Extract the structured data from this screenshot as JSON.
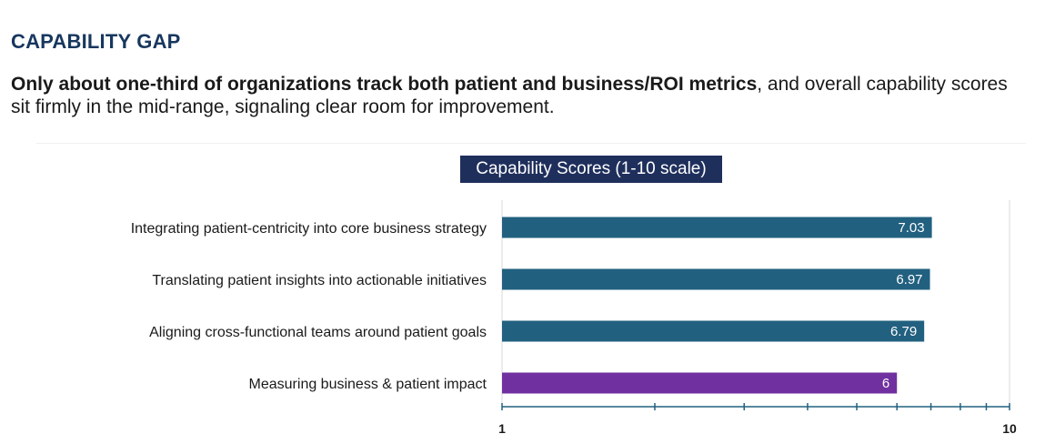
{
  "header": {
    "title": "CAPABILITY GAP",
    "summary_bold": "Only about one-third of organizations track both patient and business/ROI metrics",
    "summary_rest": ", and overall capability scores sit firmly in the mid-range, signaling clear room for improvement."
  },
  "chart_data": {
    "type": "bar",
    "orientation": "horizontal",
    "title": "Capability Scores (1-10 scale)",
    "categories": [
      "Integrating patient-centricity into core business strategy",
      "Translating patient insights into actionable initiatives",
      "Aligning cross-functional teams around patient goals",
      "Measuring business & patient impact"
    ],
    "values": [
      7.03,
      6.97,
      6.79,
      6
    ],
    "value_labels": [
      "7.03",
      "6.97",
      "6.79",
      "6"
    ],
    "colors": [
      "#22607f",
      "#22607f",
      "#22607f",
      "#7030a0"
    ],
    "xscale": "log",
    "xlim": [
      1,
      10
    ],
    "xtick_labels": [
      "1",
      "10"
    ],
    "minor_ticks": [
      2,
      3,
      4,
      5,
      6,
      7,
      8,
      9
    ],
    "xlabel": "",
    "ylabel": ""
  }
}
